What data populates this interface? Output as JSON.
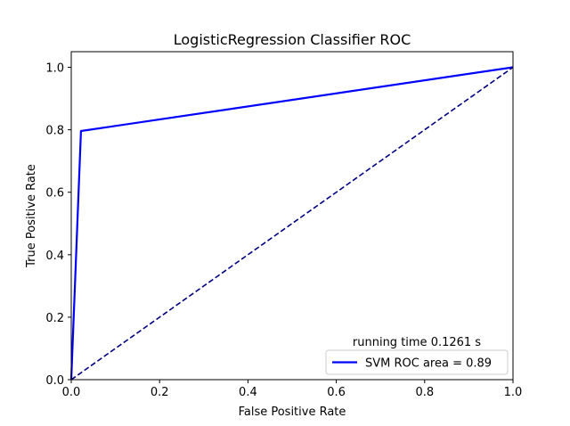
{
  "chart_data": {
    "type": "line",
    "title": "LogisticRegression  Classifier ROC",
    "xlabel": "False Positive Rate",
    "ylabel": "True Positive Rate",
    "xlim": [
      0.0,
      1.0
    ],
    "ylim": [
      0.0,
      1.05
    ],
    "grid": false,
    "x_ticks": [
      "0.0",
      "0.2",
      "0.4",
      "0.6",
      "0.8",
      "1.0"
    ],
    "y_ticks": [
      "0.0",
      "0.2",
      "0.4",
      "0.6",
      "0.8",
      "1.0"
    ],
    "series": [
      {
        "name": "SVM ROC area = 0.89",
        "color": "#0000ff",
        "style": "solid",
        "x": [
          0.0,
          0.022,
          1.0
        ],
        "y": [
          0.0,
          0.796,
          1.0
        ]
      },
      {
        "color": "#000080",
        "style": "dashed",
        "x": [
          0.0,
          1.0
        ],
        "y": [
          0.0,
          1.0
        ]
      }
    ],
    "legend": {
      "placement": "lower-right",
      "title": "running time 0.1261 s",
      "entries": [
        "SVM ROC area = 0.89"
      ]
    }
  }
}
